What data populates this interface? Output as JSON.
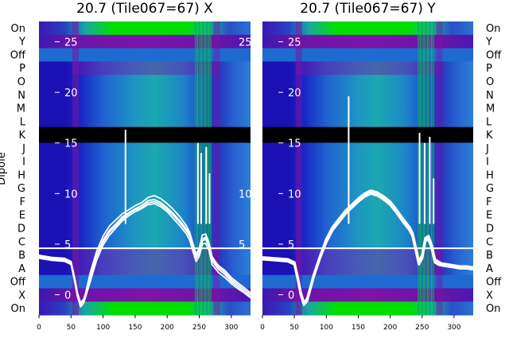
{
  "chart_data": {
    "type": "heatmap",
    "ylabel": "Dipole",
    "dipole_labels_top_to_bottom": [
      "On",
      "Y",
      "Off",
      "P",
      "O",
      "N",
      "M",
      "L",
      "K",
      "J",
      "I",
      "H",
      "G",
      "F",
      "E",
      "D",
      "C",
      "B",
      "A",
      "Off",
      "X",
      "On"
    ],
    "x_range": [
      0,
      330
    ],
    "x_ticks": [
      0,
      50,
      100,
      150,
      200,
      250,
      300
    ],
    "overlay_y_range": [
      -2,
      27
    ],
    "overlay_y_ticks": [
      0,
      5,
      10,
      15,
      20,
      25
    ],
    "flagged_band_dipole": "K",
    "colors": {
      "flagged": "#000000",
      "overlay": "#ffffff",
      "deep": "#1a10b4",
      "purple": "#7a14a6",
      "green": "#00e000"
    },
    "panels": [
      {
        "title": "20.7 (Tile067=67) X",
        "bright_channel_band": [
          243,
          270
        ],
        "spikes": [
          {
            "x": 135,
            "y": 16.3
          },
          {
            "x": 248,
            "y": 15
          },
          {
            "x": 253,
            "y": 14
          },
          {
            "x": 261,
            "y": 14.6
          },
          {
            "x": 266,
            "y": 12
          }
        ],
        "series": [
          {
            "x": [
              0,
              20,
              40,
              50,
              56,
              60,
              65,
              70,
              80,
              90,
              100,
              110,
              120,
              130,
              140,
              150,
              160,
              170,
              180,
              190,
              200,
              210,
              220,
              230,
              235,
              240,
              245,
              250,
              255,
              260,
              265,
              270,
              275,
              280,
              290,
              300,
              310,
              320,
              330
            ],
            "y": [
              3.8,
              3.6,
              3.5,
              3.2,
              1.5,
              0.1,
              -0.9,
              -0.5,
              1.8,
              3.9,
              5.4,
              6.4,
              7.0,
              7.7,
              8.1,
              8.5,
              8.8,
              9.3,
              9.4,
              9.1,
              8.6,
              8.0,
              7.3,
              6.5,
              6.0,
              4.8,
              3.8,
              4.3,
              5.5,
              5.7,
              5.0,
              3.6,
              3.1,
              2.7,
              2.2,
              1.5,
              1.0,
              0.5,
              0.0
            ]
          },
          {
            "x": [
              0,
              20,
              40,
              50,
              56,
              60,
              65,
              70,
              80,
              90,
              100,
              110,
              120,
              130,
              140,
              150,
              160,
              170,
              180,
              190,
              200,
              210,
              220,
              230,
              235,
              240,
              245,
              250,
              255,
              260,
              265,
              270,
              275,
              280,
              290,
              300,
              310,
              320,
              330
            ],
            "y": [
              3.6,
              3.4,
              3.3,
              3.0,
              1.2,
              -0.2,
              -1.2,
              -0.8,
              1.3,
              3.4,
              4.9,
              5.9,
              6.6,
              7.3,
              7.8,
              8.2,
              8.5,
              8.9,
              9.0,
              8.7,
              8.2,
              7.5,
              6.8,
              6.0,
              5.4,
              4.3,
              3.3,
              3.8,
              5.0,
              5.1,
              4.4,
              3.0,
              2.6,
              2.2,
              1.7,
              1.1,
              0.6,
              0.2,
              -0.3
            ]
          },
          {
            "x": [
              0,
              20,
              40,
              50,
              56,
              60,
              65,
              70,
              80,
              90,
              100,
              110,
              120,
              130,
              140,
              150,
              160,
              170,
              180,
              190,
              200,
              210,
              220,
              230,
              235,
              240,
              245,
              250,
              255,
              260,
              265,
              270,
              275,
              280,
              290,
              300,
              310,
              320,
              330
            ],
            "y": [
              3.7,
              3.5,
              3.4,
              3.1,
              1.4,
              0.0,
              -1.0,
              -0.6,
              2.2,
              4.3,
              5.8,
              6.8,
              7.4,
              8.0,
              8.4,
              8.8,
              9.1,
              9.6,
              9.8,
              9.5,
              9.0,
              8.4,
              7.7,
              6.8,
              6.2,
              5.1,
              4.0,
              4.6,
              5.9,
              6.0,
              5.2,
              3.8,
              3.3,
              2.9,
              2.4,
              1.7,
              1.2,
              0.7,
              0.2
            ]
          },
          {
            "x": [
              0,
              20,
              40,
              50,
              56,
              60,
              65,
              70,
              80,
              90,
              100,
              110,
              120,
              130,
              140,
              150,
              160,
              170,
              180,
              190,
              200,
              210,
              220,
              230,
              235,
              240,
              245,
              250,
              255,
              260,
              265,
              270,
              275,
              280,
              290,
              300,
              310,
              320,
              330
            ],
            "y": [
              3.9,
              3.7,
              3.6,
              3.3,
              1.6,
              0.2,
              -0.8,
              -0.4,
              1.6,
              3.6,
              5.2,
              6.2,
              6.8,
              7.5,
              8.0,
              8.4,
              8.6,
              9.1,
              9.2,
              8.9,
              8.4,
              7.8,
              7.1,
              6.3,
              5.8,
              4.6,
              3.6,
              4.1,
              5.3,
              5.5,
              4.8,
              3.4,
              2.9,
              2.5,
              2.0,
              1.3,
              0.8,
              0.3,
              -0.2
            ]
          }
        ]
      },
      {
        "title": "20.7 (Tile067=67) Y",
        "bright_channel_band": [
          243,
          270
        ],
        "spikes": [
          {
            "x": 135,
            "y": 19.6
          },
          {
            "x": 246,
            "y": 16
          },
          {
            "x": 254,
            "y": 15
          },
          {
            "x": 262,
            "y": 15.6
          },
          {
            "x": 268,
            "y": 11.5
          }
        ],
        "series": [
          {
            "x": [
              0,
              20,
              40,
              50,
              56,
              60,
              65,
              70,
              80,
              90,
              100,
              110,
              120,
              130,
              140,
              150,
              160,
              170,
              180,
              190,
              200,
              210,
              220,
              230,
              235,
              240,
              245,
              250,
              255,
              260,
              265,
              270,
              275,
              280,
              290,
              300,
              310,
              320,
              330
            ],
            "y": [
              3.5,
              3.4,
              3.3,
              3.0,
              1.3,
              0.0,
              -1.0,
              -0.6,
              1.7,
              3.6,
              5.2,
              6.4,
              7.2,
              8.0,
              8.6,
              9.2,
              9.7,
              10.0,
              9.8,
              9.4,
              8.9,
              8.1,
              7.2,
              6.4,
              5.8,
              4.4,
              3.0,
              3.6,
              5.3,
              5.5,
              4.6,
              3.2,
              3.0,
              2.9,
              2.8,
              2.7,
              2.6,
              2.6,
              2.5
            ]
          },
          {
            "x": [
              0,
              20,
              40,
              50,
              56,
              60,
              65,
              70,
              80,
              90,
              100,
              110,
              120,
              130,
              140,
              150,
              160,
              170,
              180,
              190,
              200,
              210,
              220,
              230,
              235,
              240,
              245,
              250,
              255,
              260,
              265,
              270,
              275,
              280,
              290,
              300,
              310,
              320,
              330
            ],
            "y": [
              3.7,
              3.6,
              3.5,
              3.2,
              1.5,
              0.2,
              -0.8,
              -0.4,
              1.9,
              3.8,
              5.5,
              6.7,
              7.5,
              8.3,
              8.9,
              9.5,
              10.0,
              10.3,
              10.1,
              9.7,
              9.2,
              8.4,
              7.5,
              6.7,
              6.1,
              4.7,
              3.3,
              3.9,
              5.6,
              5.8,
              4.9,
              3.5,
              3.3,
              3.1,
              3.0,
              2.9,
              2.8,
              2.8,
              2.7
            ]
          },
          {
            "x": [
              0,
              20,
              40,
              50,
              56,
              60,
              65,
              70,
              80,
              90,
              100,
              110,
              120,
              130,
              140,
              150,
              160,
              170,
              180,
              190,
              200,
              210,
              220,
              230,
              235,
              240,
              245,
              250,
              255,
              260,
              265,
              270,
              275,
              280,
              290,
              300,
              310,
              320,
              330
            ],
            "y": [
              3.6,
              3.5,
              3.4,
              3.1,
              1.4,
              0.1,
              -0.9,
              -0.5,
              1.8,
              3.7,
              5.3,
              6.5,
              7.3,
              8.1,
              8.7,
              9.3,
              9.8,
              10.1,
              9.9,
              9.5,
              9.0,
              8.2,
              7.3,
              6.5,
              5.9,
              4.5,
              3.1,
              3.7,
              5.4,
              5.6,
              4.7,
              3.3,
              3.1,
              3.0,
              2.9,
              2.8,
              2.7,
              2.7,
              2.6
            ]
          }
        ]
      }
    ]
  }
}
